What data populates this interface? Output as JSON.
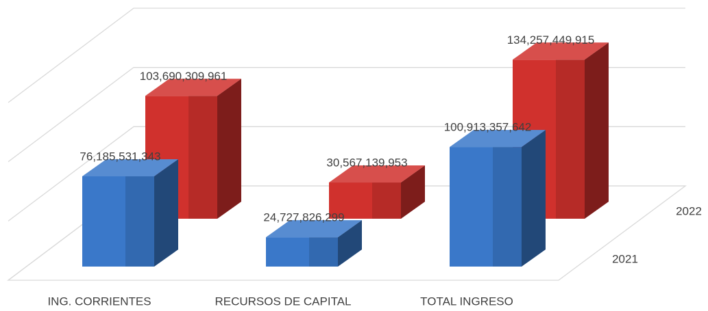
{
  "chart_data": {
    "type": "bar3d",
    "categories": [
      "ING. CORRIENTES",
      "RECURSOS DE CAPITAL",
      "TOTAL INGRESO"
    ],
    "series": [
      {
        "name": "2021",
        "color": "#3a78c9",
        "values": [
          76185531343,
          24727826299,
          100913357642
        ],
        "value_labels": [
          "76,185,531,343",
          "24,727,826,299",
          "100,913,357,642"
        ]
      },
      {
        "name": "2022",
        "color": "#d0312d",
        "values": [
          103690309961,
          30567139953,
          134257449915
        ],
        "value_labels": [
          "103,690,309,961",
          "30,567,139,953",
          "134,257,449,915"
        ]
      }
    ],
    "ylim": [
      0,
      150000000000
    ],
    "yticks": [
      0,
      50000000000,
      100000000000,
      150000000000
    ],
    "grid": true
  }
}
